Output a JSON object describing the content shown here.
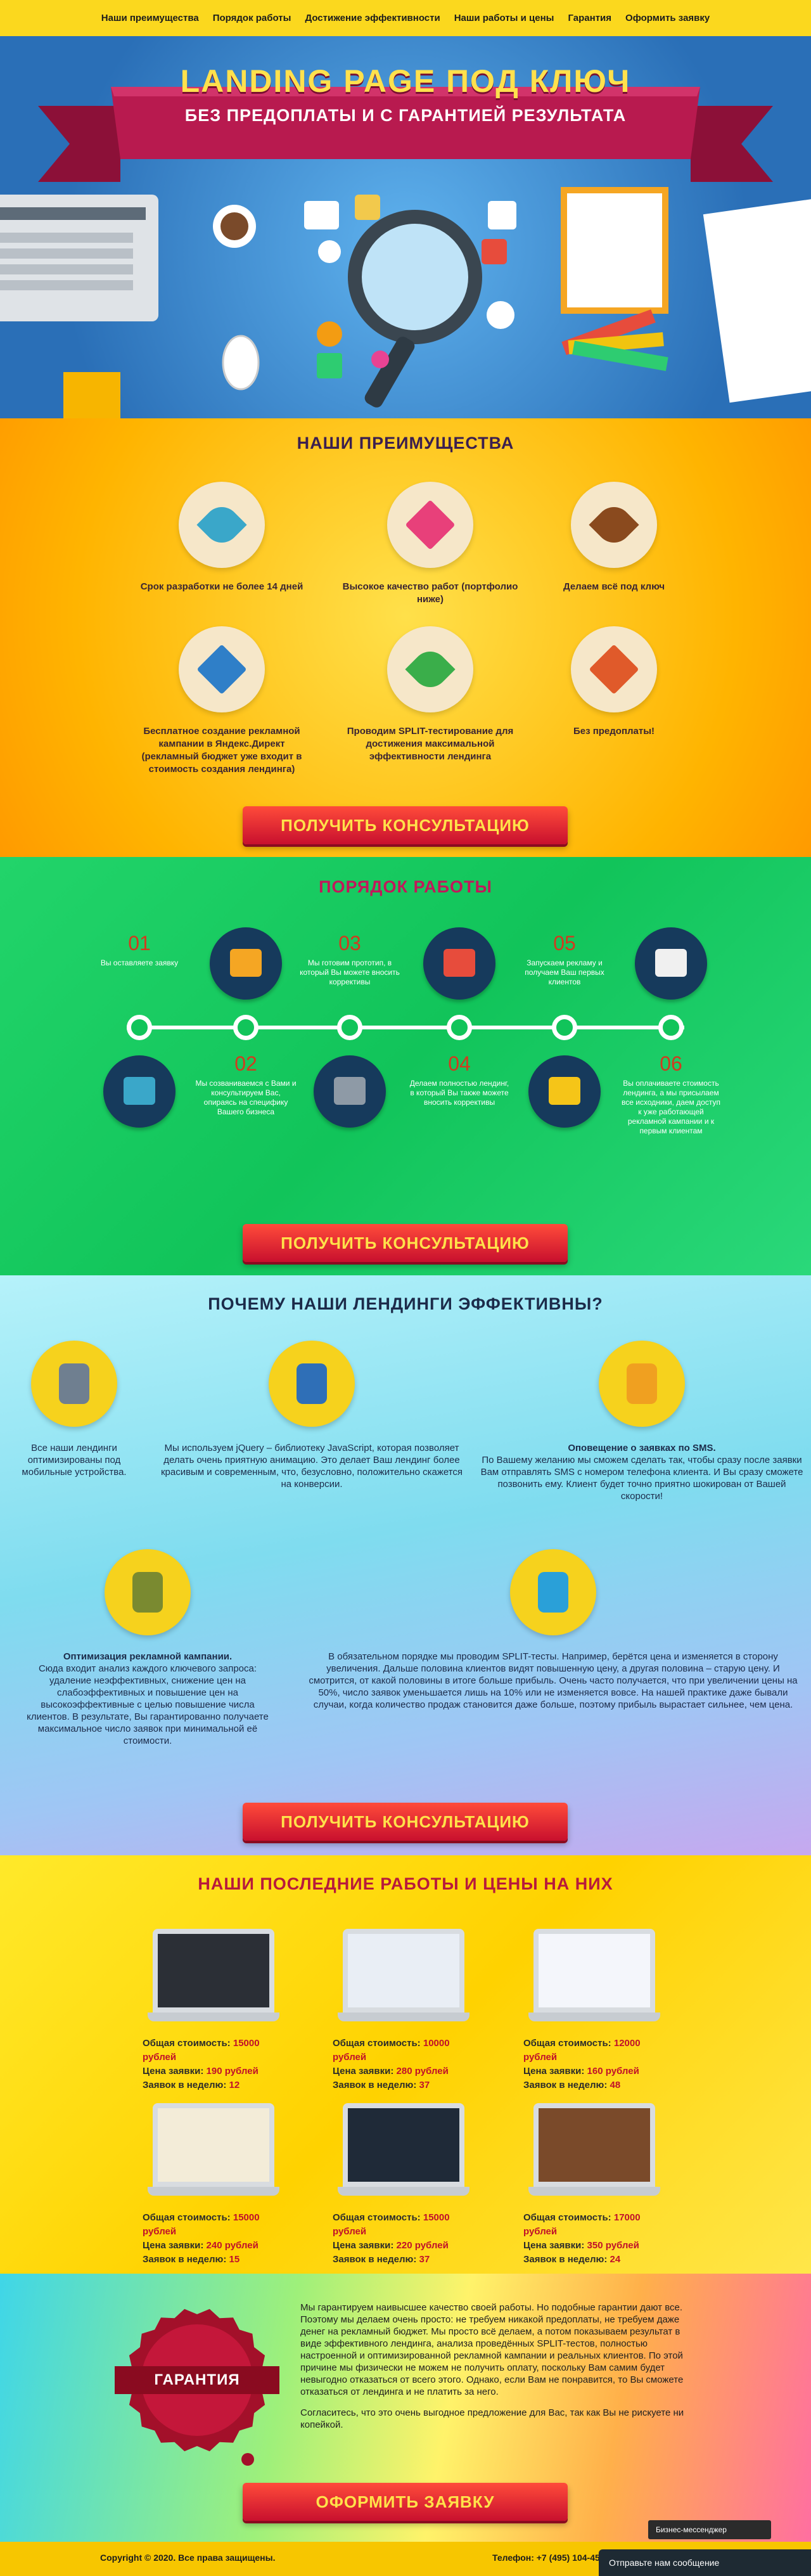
{
  "nav": [
    "Наши преимущества",
    "Порядок работы",
    "Достижение эффективности",
    "Наши работы и цены",
    "Гарантия",
    "Оформить заявку"
  ],
  "hero": {
    "title": "LANDING PAGE ПОД КЛЮЧ",
    "subtitle": "БЕЗ ПРЕДОПЛАТЫ И С ГАРАНТИЕЙ РЕЗУЛЬТАТА"
  },
  "advantages": {
    "title": "НАШИ ПРЕИМУЩЕСТВА",
    "items": [
      "Срок разработки не более 14 дней",
      "Высокое качество работ (портфолио ниже)",
      "Делаем всё под ключ",
      "Бесплатное создание рекламной кампании в Яндекс.Директ (рекламный бюджет уже входит в стоимость создания лендинга)",
      "Проводим SPLIT-тестирование для достижения максимальной эффективности лендинга",
      "Без предоплаты!"
    ],
    "button": "ПОЛУЧИТЬ КОНСУЛЬТАЦИЮ"
  },
  "process": {
    "title": "ПОРЯДОК РАБОТЫ",
    "steps": [
      {
        "number": "01",
        "text": "Вы оставляете заявку"
      },
      {
        "number": "02",
        "text": "Мы созваниваемся с Вами и консультируем Вас, опираясь на специфику Вашего бизнеса"
      },
      {
        "number": "03",
        "text": "Мы готовим прототип, в который Вы можете вносить коррективы"
      },
      {
        "number": "04",
        "text": "Делаем полностью лендинг, в который Вы также можете вносить коррективы"
      },
      {
        "number": "05",
        "text": "Запускаем рекламу и получаем Ваш первых клиентов"
      },
      {
        "number": "06",
        "text": "Вы оплачиваете стоимость лендинга, а мы присылаем все исходники, даем доступ к уже работающей рекламной кампании и к первым клиентам"
      }
    ],
    "button": "ПОЛУЧИТЬ КОНСУЛЬТАЦИЮ"
  },
  "efficiency": {
    "title": "ПОЧЕМУ НАШИ ЛЕНДИНГИ ЭФФЕКТИВНЫ?",
    "items": [
      {
        "text": "Все наши лендинги оптимизированы под мобильные устройства."
      },
      {
        "text": "Мы используем jQuery – библиотеку JavaScript, которая позволяет делать очень приятную анимацию. Это делает Ваш лендинг более красивым и современным, что, безусловно, положительно скажется на конверсии."
      },
      {
        "heading": "Оповещение о заявках по SMS.",
        "text": "По Вашему желанию мы сможем сделать так, чтобы сразу после заявки Вам отправлять SMS с номером телефона клиента. И Вы сразу сможете позвонить ему. Клиент будет точно приятно шокирован от Вашей скорости!"
      },
      {
        "heading": "Оптимизация рекламной кампании.",
        "text": "Сюда входит анализ каждого ключевого запроса: удаление неэффективных, снижение цен на слабоэффективных и повышение цен на высокоэффективные с целью повышение числа клиентов. В результате, Вы гарантированно получаете максимальное число заявок при минимальной её стоимости."
      },
      {
        "text": "В обязательном порядке мы проводим SPLIT-тесты. Например, берётся цена и изменяется в сторону увеличения. Дальше половина клиентов видят повышенную цену, а другая половина – старую цену. И смотрится, от какой половины в итоге больше прибыль. Очень часто получается, что при увеличении цены на 50%, число заявок уменьшается лишь на 10% или не изменяется вовсе. На нашей практике даже бывали случаи, когда количество продаж становится даже больше, поэтому прибыль вырастает сильнее, чем цена."
      }
    ],
    "button": "ПОЛУЧИТЬ КОНСУЛЬТАЦИЮ"
  },
  "works": {
    "title": "НАШИ ПОСЛЕДНИЕ РАБОТЫ И ЦЕНЫ НА НИХ",
    "labels": {
      "cost": "Общая стоимость:",
      "lead": "Цена заявки:",
      "week": "Заявок в неделю:"
    },
    "items": [
      {
        "cost": "15000 рублей",
        "lead": "190 рублей",
        "week": "12"
      },
      {
        "cost": "10000 рублей",
        "lead": "280 рублей",
        "week": "37"
      },
      {
        "cost": "12000 рублей",
        "lead": "160 рублей",
        "week": "48"
      },
      {
        "cost": "15000 рублей",
        "lead": "240 рублей",
        "week": "15"
      },
      {
        "cost": "15000 рублей",
        "lead": "220 рублей",
        "week": "37"
      },
      {
        "cost": "17000 рублей",
        "lead": "350 рублей",
        "week": "24"
      }
    ]
  },
  "guarantee": {
    "seal": "ГАРАНТИЯ",
    "paragraphs": [
      "Мы гарантируем наивысшее качество своей работы. Но подобные гарантии дают все. Поэтому мы делаем очень просто: не требуем никакой предоплаты, не требуем даже денег на рекламный бюджет. Мы просто всё делаем, а потом показываем результат в виде эффективного лендинга, анализа проведённых SPLIT-тестов, полностью настроенной и оптимизированной рекламной кампании и реальных клиентов. По этой причине мы физически не можем не получить оплату, поскольку Вам самим будет невыгодно отказаться от всего этого. Однако, если Вам не понравится, то Вы сможете отказаться от лендинга и не платить за него.",
      "Согласитесь, что это очень выгодное предложение для Вас, так как Вы не рискуете ни копейкой."
    ],
    "button": "ОФОРМИТЬ ЗАЯВКУ"
  },
  "footer": {
    "copyright": "Copyright © 2020. Все права защищены.",
    "phone": "Телефон: +7 (495) 104-45-"
  },
  "chat": {
    "title": "Бизнес-мессенджер",
    "message": "Отправьте нам сообщение"
  }
}
